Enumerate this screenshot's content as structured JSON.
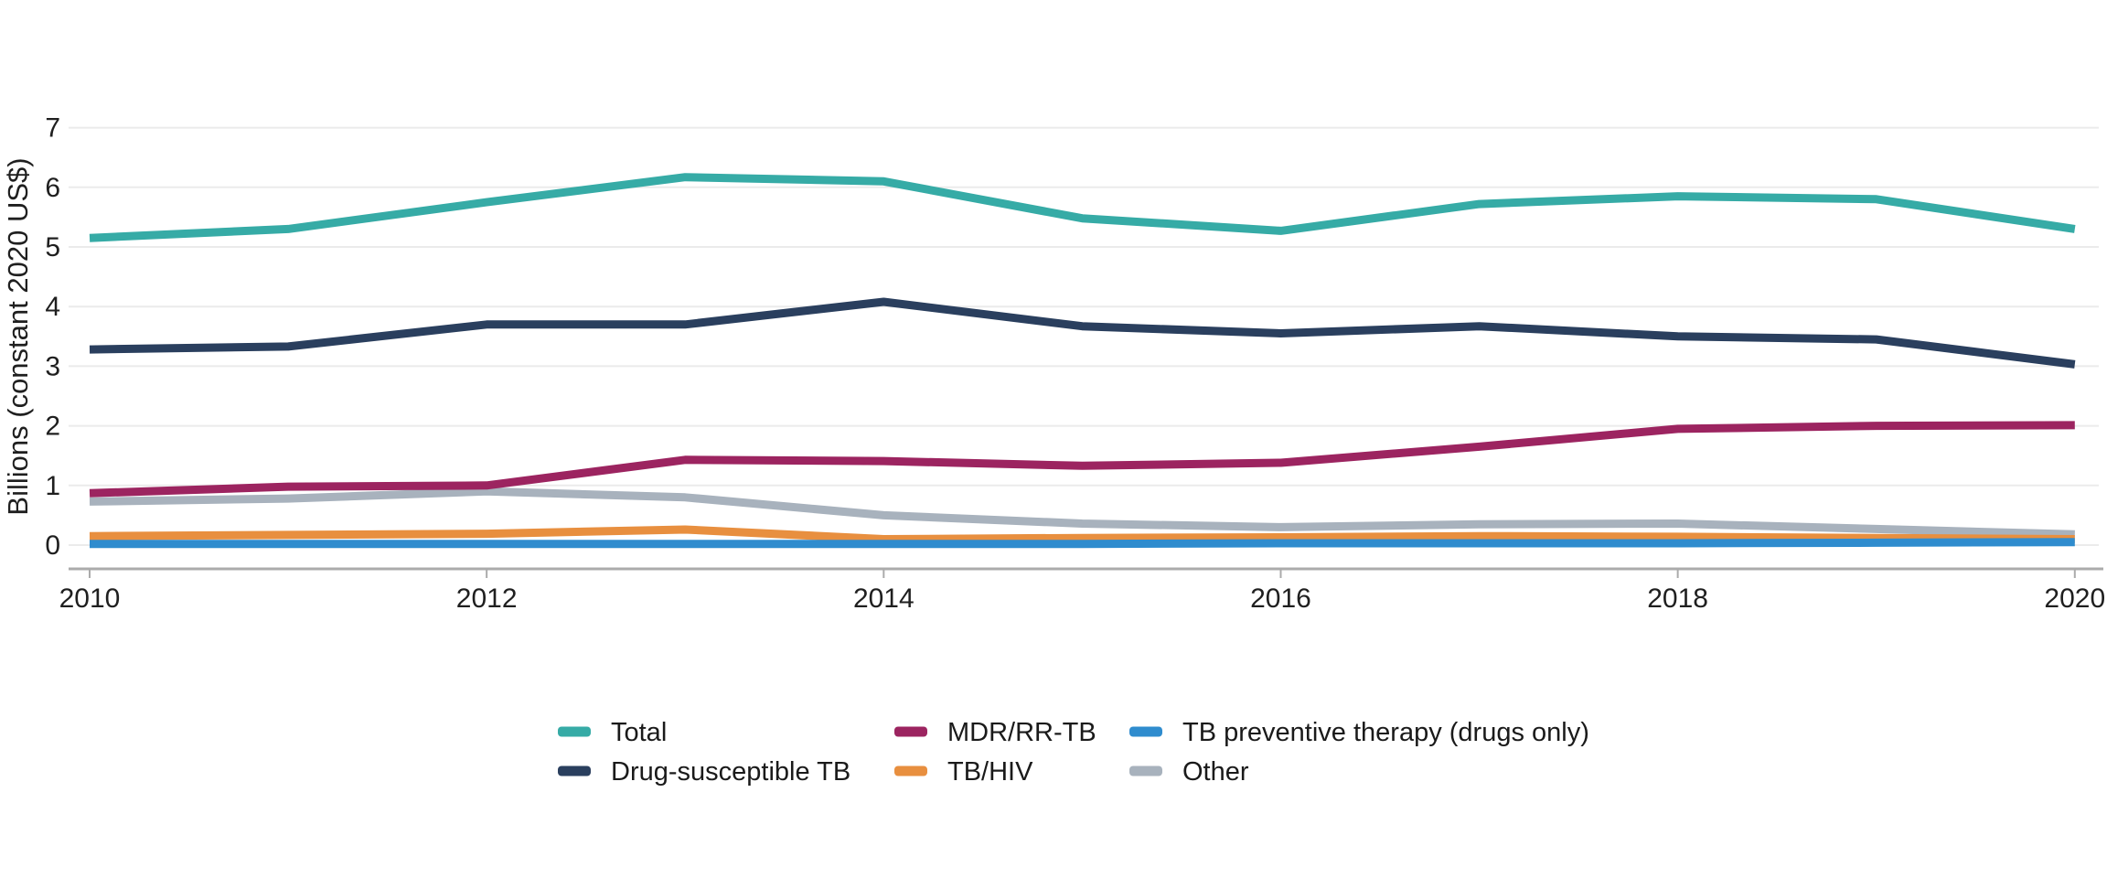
{
  "chart_data": {
    "type": "line",
    "title": "",
    "ylabel": "Billions (constant 2020 US$)",
    "xlabel": "",
    "x": [
      2010,
      2011,
      2012,
      2013,
      2014,
      2015,
      2016,
      2017,
      2018,
      2019,
      2020
    ],
    "x_tick_labels": [
      "2010",
      "2012",
      "2014",
      "2016",
      "2018",
      "2020"
    ],
    "x_tick_years": [
      2010,
      2012,
      2014,
      2016,
      2018,
      2020
    ],
    "y_ticks": [
      0,
      1,
      2,
      3,
      4,
      5,
      6,
      7
    ],
    "ylim": [
      0,
      7
    ],
    "xlim": [
      2010,
      2020
    ],
    "grid": "horizontal",
    "legend_position": "bottom",
    "series": [
      {
        "name": "Total",
        "color": "#36ABA6",
        "values": [
          5.15,
          5.3,
          5.75,
          6.17,
          6.1,
          5.48,
          5.27,
          5.72,
          5.85,
          5.8,
          5.3
        ]
      },
      {
        "name": "Drug-susceptible TB",
        "color": "#2A3F5E",
        "values": [
          3.28,
          3.33,
          3.7,
          3.7,
          4.08,
          3.67,
          3.55,
          3.67,
          3.5,
          3.45,
          3.03
        ]
      },
      {
        "name": "MDR/RR-TB",
        "color": "#9C2460",
        "values": [
          0.87,
          0.98,
          1.0,
          1.43,
          1.41,
          1.33,
          1.38,
          1.65,
          1.95,
          2.0,
          2.01
        ]
      },
      {
        "name": "TB/HIV",
        "color": "#E88F3F",
        "values": [
          0.15,
          0.17,
          0.19,
          0.26,
          0.1,
          0.12,
          0.13,
          0.15,
          0.14,
          0.12,
          0.1
        ]
      },
      {
        "name": "TB preventive therapy (drugs only)",
        "color": "#2F8CCE",
        "values": [
          0.02,
          0.02,
          0.02,
          0.02,
          0.02,
          0.02,
          0.03,
          0.03,
          0.03,
          0.04,
          0.05
        ]
      },
      {
        "name": "Other",
        "color": "#A8B2BD",
        "values": [
          0.73,
          0.78,
          0.9,
          0.8,
          0.5,
          0.36,
          0.3,
          0.35,
          0.36,
          0.27,
          0.18
        ]
      }
    ],
    "colors": {
      "gridline": "#EBEBEB",
      "axis_line": "#ABABAB",
      "tick_text": "#1F1F1F",
      "axis_title_text": "#1F1F1F",
      "legend_text": "#1A1A1A",
      "background": "#FFFFFF"
    }
  }
}
